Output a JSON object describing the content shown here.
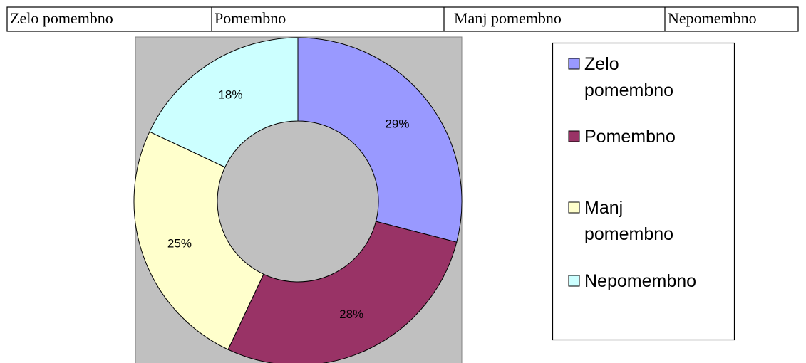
{
  "header_row": [
    "Zelo pomembno",
    "Pomembno",
    "Manj pomembno",
    "Nepomembno"
  ],
  "chart_data": {
    "type": "donut",
    "categories": [
      "Zelo pomembno",
      "Pomembno",
      "Manj pomembno",
      "Nepomembno"
    ],
    "values": [
      29,
      28,
      25,
      18
    ],
    "value_labels": [
      "29%",
      "28%",
      "25%",
      "18%"
    ],
    "colors": [
      "#9999ff",
      "#993366",
      "#ffffcc",
      "#ccffff"
    ],
    "legend": "right"
  }
}
